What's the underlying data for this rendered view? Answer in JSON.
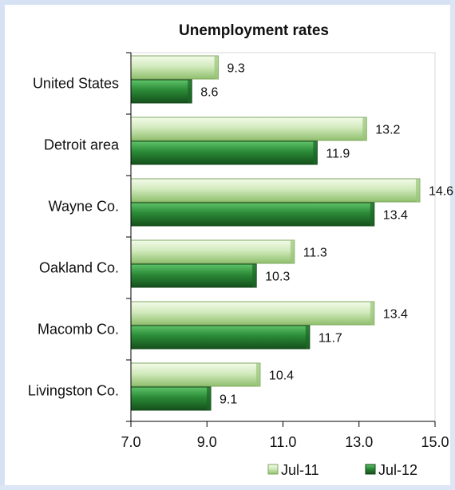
{
  "chart_data": {
    "type": "bar",
    "orientation": "horizontal",
    "title": "Unemployment rates",
    "categories": [
      "United States",
      "Detroit area",
      "Wayne Co.",
      "Oakland Co.",
      "Macomb Co.",
      "Livingston Co."
    ],
    "series": [
      {
        "name": "Jul-11",
        "values": [
          9.3,
          13.2,
          14.6,
          11.3,
          13.4,
          10.4
        ],
        "color": "#c9e4b4"
      },
      {
        "name": "Jul-12",
        "values": [
          8.6,
          11.9,
          13.4,
          10.3,
          11.7,
          9.1
        ],
        "color": "#2e8b3a"
      }
    ],
    "xlim": [
      7.0,
      15.0
    ],
    "xticks": [
      "7.0",
      "9.0",
      "11.0",
      "13.0",
      "15.0"
    ],
    "grid": false,
    "legend_position": "bottom-right",
    "data_labels": true
  }
}
